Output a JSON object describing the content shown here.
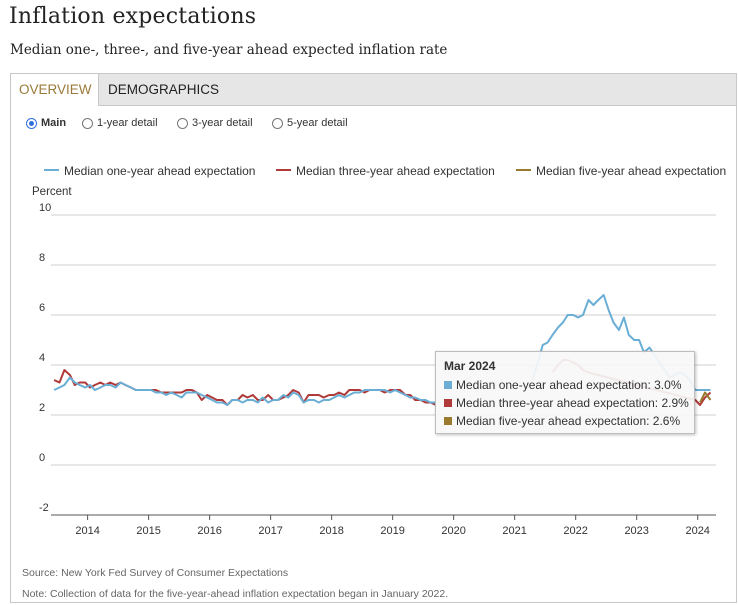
{
  "header": {
    "title": "Inflation expectations",
    "subtitle": "Median one-, three-, and five-year ahead expected inflation rate"
  },
  "tabs": [
    {
      "label": "OVERVIEW",
      "active": true
    },
    {
      "label": "DEMOGRAPHICS",
      "active": false
    }
  ],
  "radios": [
    {
      "label": "Main",
      "selected": true
    },
    {
      "label": "1-year detail",
      "selected": false
    },
    {
      "label": "3-year detail",
      "selected": false
    },
    {
      "label": "5-year detail",
      "selected": false
    }
  ],
  "legend": [
    {
      "label": "Median one-year ahead expectation",
      "color": "#6aaed6"
    },
    {
      "label": "Median three-year ahead expectation",
      "color": "#b03a3a"
    },
    {
      "label": "Median five-year ahead expectation",
      "color": "#9a7a2e"
    }
  ],
  "tooltip": {
    "title": "Mar 2024",
    "rows": [
      {
        "text": "Median one-year ahead expectation: 3.0%",
        "color": "#6aaed6"
      },
      {
        "text": "Median three-year ahead expectation: 2.9%",
        "color": "#b03a3a"
      },
      {
        "text": "Median five-year ahead expectation: 2.6%",
        "color": "#9a7a2e"
      }
    ]
  },
  "footer": {
    "source": "Source: New York Fed Survey of Consumer Expectations",
    "note": "Note: Collection of data for the five-year-ahead inflation expectation began in January 2022."
  },
  "chart_data": {
    "type": "line",
    "ylabel": "Percent",
    "ylim": [
      -2,
      10
    ],
    "yticks": [
      10,
      8,
      6,
      4,
      2,
      0,
      -2
    ],
    "xlim": [
      2013.4,
      2024.3
    ],
    "xticks": [
      2014,
      2015,
      2016,
      2017,
      2018,
      2019,
      2020,
      2021,
      2022,
      2023,
      2024
    ],
    "grid": true,
    "legend_position": "top",
    "series": [
      {
        "name": "Median one-year ahead expectation",
        "color": "#6aaed6",
        "points": [
          [
            2013.45,
            3.0
          ],
          [
            2013.54,
            3.1
          ],
          [
            2013.62,
            3.2
          ],
          [
            2013.71,
            3.5
          ],
          [
            2013.79,
            3.3
          ],
          [
            2013.87,
            3.2
          ],
          [
            2013.96,
            3.1
          ],
          [
            2014.04,
            3.2
          ],
          [
            2014.12,
            3.0
          ],
          [
            2014.21,
            3.1
          ],
          [
            2014.29,
            3.2
          ],
          [
            2014.37,
            3.2
          ],
          [
            2014.46,
            3.1
          ],
          [
            2014.54,
            3.3
          ],
          [
            2014.62,
            3.2
          ],
          [
            2014.71,
            3.1
          ],
          [
            2014.79,
            3.0
          ],
          [
            2014.87,
            3.0
          ],
          [
            2014.96,
            3.0
          ],
          [
            2015.04,
            3.0
          ],
          [
            2015.12,
            2.9
          ],
          [
            2015.21,
            2.9
          ],
          [
            2015.29,
            2.8
          ],
          [
            2015.37,
            2.9
          ],
          [
            2015.46,
            2.8
          ],
          [
            2015.54,
            2.7
          ],
          [
            2015.62,
            2.9
          ],
          [
            2015.71,
            2.9
          ],
          [
            2015.79,
            2.9
          ],
          [
            2015.87,
            2.8
          ],
          [
            2015.96,
            2.7
          ],
          [
            2016.04,
            2.6
          ],
          [
            2016.12,
            2.5
          ],
          [
            2016.21,
            2.5
          ],
          [
            2016.29,
            2.4
          ],
          [
            2016.37,
            2.6
          ],
          [
            2016.46,
            2.6
          ],
          [
            2016.54,
            2.5
          ],
          [
            2016.62,
            2.6
          ],
          [
            2016.71,
            2.6
          ],
          [
            2016.79,
            2.5
          ],
          [
            2016.87,
            2.7
          ],
          [
            2016.96,
            2.5
          ],
          [
            2017.04,
            2.6
          ],
          [
            2017.12,
            2.6
          ],
          [
            2017.21,
            2.8
          ],
          [
            2017.29,
            2.7
          ],
          [
            2017.37,
            2.9
          ],
          [
            2017.46,
            2.8
          ],
          [
            2017.54,
            2.5
          ],
          [
            2017.62,
            2.6
          ],
          [
            2017.71,
            2.6
          ],
          [
            2017.79,
            2.5
          ],
          [
            2017.87,
            2.6
          ],
          [
            2017.96,
            2.6
          ],
          [
            2018.04,
            2.7
          ],
          [
            2018.12,
            2.8
          ],
          [
            2018.21,
            2.7
          ],
          [
            2018.29,
            2.8
          ],
          [
            2018.37,
            2.9
          ],
          [
            2018.46,
            2.9
          ],
          [
            2018.54,
            3.0
          ],
          [
            2018.62,
            3.0
          ],
          [
            2018.71,
            3.0
          ],
          [
            2018.79,
            3.0
          ],
          [
            2018.87,
            3.0
          ],
          [
            2018.96,
            2.9
          ],
          [
            2019.04,
            3.0
          ],
          [
            2019.12,
            2.9
          ],
          [
            2019.21,
            2.8
          ],
          [
            2019.29,
            2.7
          ],
          [
            2019.37,
            2.7
          ],
          [
            2019.46,
            2.6
          ],
          [
            2019.54,
            2.6
          ],
          [
            2019.62,
            2.5
          ],
          [
            2019.71,
            2.5
          ]
        ],
        "points_right": [
          [
            2021.29,
            3.4
          ],
          [
            2021.37,
            4.0
          ],
          [
            2021.46,
            4.8
          ],
          [
            2021.54,
            4.9
          ],
          [
            2021.62,
            5.2
          ],
          [
            2021.71,
            5.5
          ],
          [
            2021.79,
            5.7
          ],
          [
            2021.87,
            6.0
          ],
          [
            2021.96,
            6.0
          ],
          [
            2022.04,
            5.9
          ],
          [
            2022.12,
            6.0
          ],
          [
            2022.21,
            6.6
          ],
          [
            2022.29,
            6.4
          ],
          [
            2022.37,
            6.6
          ],
          [
            2022.46,
            6.8
          ],
          [
            2022.54,
            6.2
          ],
          [
            2022.62,
            5.7
          ],
          [
            2022.71,
            5.4
          ],
          [
            2022.79,
            5.9
          ],
          [
            2022.87,
            5.2
          ],
          [
            2022.96,
            5.0
          ],
          [
            2023.04,
            5.0
          ],
          [
            2023.12,
            4.5
          ],
          [
            2023.21,
            4.7
          ],
          [
            2023.29,
            4.4
          ],
          [
            2023.37,
            4.1
          ],
          [
            2023.46,
            3.8
          ],
          [
            2023.54,
            3.5
          ],
          [
            2023.62,
            3.6
          ],
          [
            2023.71,
            3.7
          ],
          [
            2023.79,
            3.6
          ],
          [
            2023.87,
            3.4
          ],
          [
            2023.96,
            3.0
          ],
          [
            2024.04,
            3.0
          ],
          [
            2024.12,
            3.0
          ],
          [
            2024.21,
            3.0
          ]
        ]
      },
      {
        "name": "Median three-year ahead expectation",
        "color": "#b03a3a",
        "points": [
          [
            2013.45,
            3.4
          ],
          [
            2013.54,
            3.3
          ],
          [
            2013.62,
            3.8
          ],
          [
            2013.71,
            3.6
          ],
          [
            2013.79,
            3.2
          ],
          [
            2013.87,
            3.3
          ],
          [
            2013.96,
            3.3
          ],
          [
            2014.04,
            3.1
          ],
          [
            2014.12,
            3.2
          ],
          [
            2014.21,
            3.3
          ],
          [
            2014.29,
            3.2
          ],
          [
            2014.37,
            3.3
          ],
          [
            2014.46,
            3.2
          ],
          [
            2014.54,
            3.3
          ],
          [
            2014.62,
            3.2
          ],
          [
            2014.71,
            3.1
          ],
          [
            2014.79,
            3.0
          ],
          [
            2014.87,
            3.0
          ],
          [
            2014.96,
            3.0
          ],
          [
            2015.04,
            3.0
          ],
          [
            2015.12,
            3.0
          ],
          [
            2015.21,
            2.9
          ],
          [
            2015.29,
            2.9
          ],
          [
            2015.37,
            2.9
          ],
          [
            2015.46,
            2.9
          ],
          [
            2015.54,
            2.9
          ],
          [
            2015.62,
            3.0
          ],
          [
            2015.71,
            3.0
          ],
          [
            2015.79,
            2.9
          ],
          [
            2015.87,
            2.6
          ],
          [
            2015.96,
            2.8
          ],
          [
            2016.04,
            2.7
          ],
          [
            2016.12,
            2.6
          ],
          [
            2016.21,
            2.6
          ],
          [
            2016.29,
            2.4
          ],
          [
            2016.37,
            2.6
          ],
          [
            2016.46,
            2.6
          ],
          [
            2016.54,
            2.8
          ],
          [
            2016.62,
            2.7
          ],
          [
            2016.71,
            2.8
          ],
          [
            2016.79,
            2.6
          ],
          [
            2016.87,
            2.6
          ],
          [
            2016.96,
            2.8
          ],
          [
            2017.04,
            2.6
          ],
          [
            2017.12,
            2.6
          ],
          [
            2017.21,
            2.7
          ],
          [
            2017.29,
            2.8
          ],
          [
            2017.37,
            3.0
          ],
          [
            2017.46,
            2.9
          ],
          [
            2017.54,
            2.5
          ],
          [
            2017.62,
            2.8
          ],
          [
            2017.71,
            2.8
          ],
          [
            2017.79,
            2.8
          ],
          [
            2017.87,
            2.7
          ],
          [
            2017.96,
            2.8
          ],
          [
            2018.04,
            2.8
          ],
          [
            2018.12,
            2.9
          ],
          [
            2018.21,
            2.8
          ],
          [
            2018.29,
            3.0
          ],
          [
            2018.37,
            3.0
          ],
          [
            2018.46,
            3.0
          ],
          [
            2018.54,
            2.9
          ],
          [
            2018.62,
            3.0
          ],
          [
            2018.71,
            3.0
          ],
          [
            2018.79,
            3.0
          ],
          [
            2018.87,
            2.9
          ],
          [
            2018.96,
            3.0
          ],
          [
            2019.04,
            3.0
          ],
          [
            2019.12,
            3.0
          ],
          [
            2019.21,
            2.8
          ],
          [
            2019.29,
            2.8
          ],
          [
            2019.37,
            2.6
          ],
          [
            2019.46,
            2.6
          ],
          [
            2019.54,
            2.5
          ],
          [
            2019.62,
            2.5
          ],
          [
            2019.71,
            2.4
          ]
        ],
        "points_right": [
          [
            2021.62,
            3.7
          ],
          [
            2021.71,
            4.0
          ],
          [
            2021.79,
            4.2
          ],
          [
            2021.87,
            4.2
          ],
          [
            2021.96,
            4.1
          ],
          [
            2022.04,
            4.0
          ],
          [
            2022.12,
            3.8
          ],
          [
            2022.21,
            3.7
          ],
          [
            2023.96,
            2.6
          ],
          [
            2024.04,
            2.4
          ],
          [
            2024.12,
            2.7
          ],
          [
            2024.21,
            2.9
          ]
        ]
      },
      {
        "name": "Median five-year ahead expectation",
        "color": "#9a7a2e",
        "points": [
          [
            2024.04,
            2.5
          ],
          [
            2024.12,
            2.9
          ],
          [
            2024.21,
            2.6
          ]
        ]
      }
    ]
  }
}
